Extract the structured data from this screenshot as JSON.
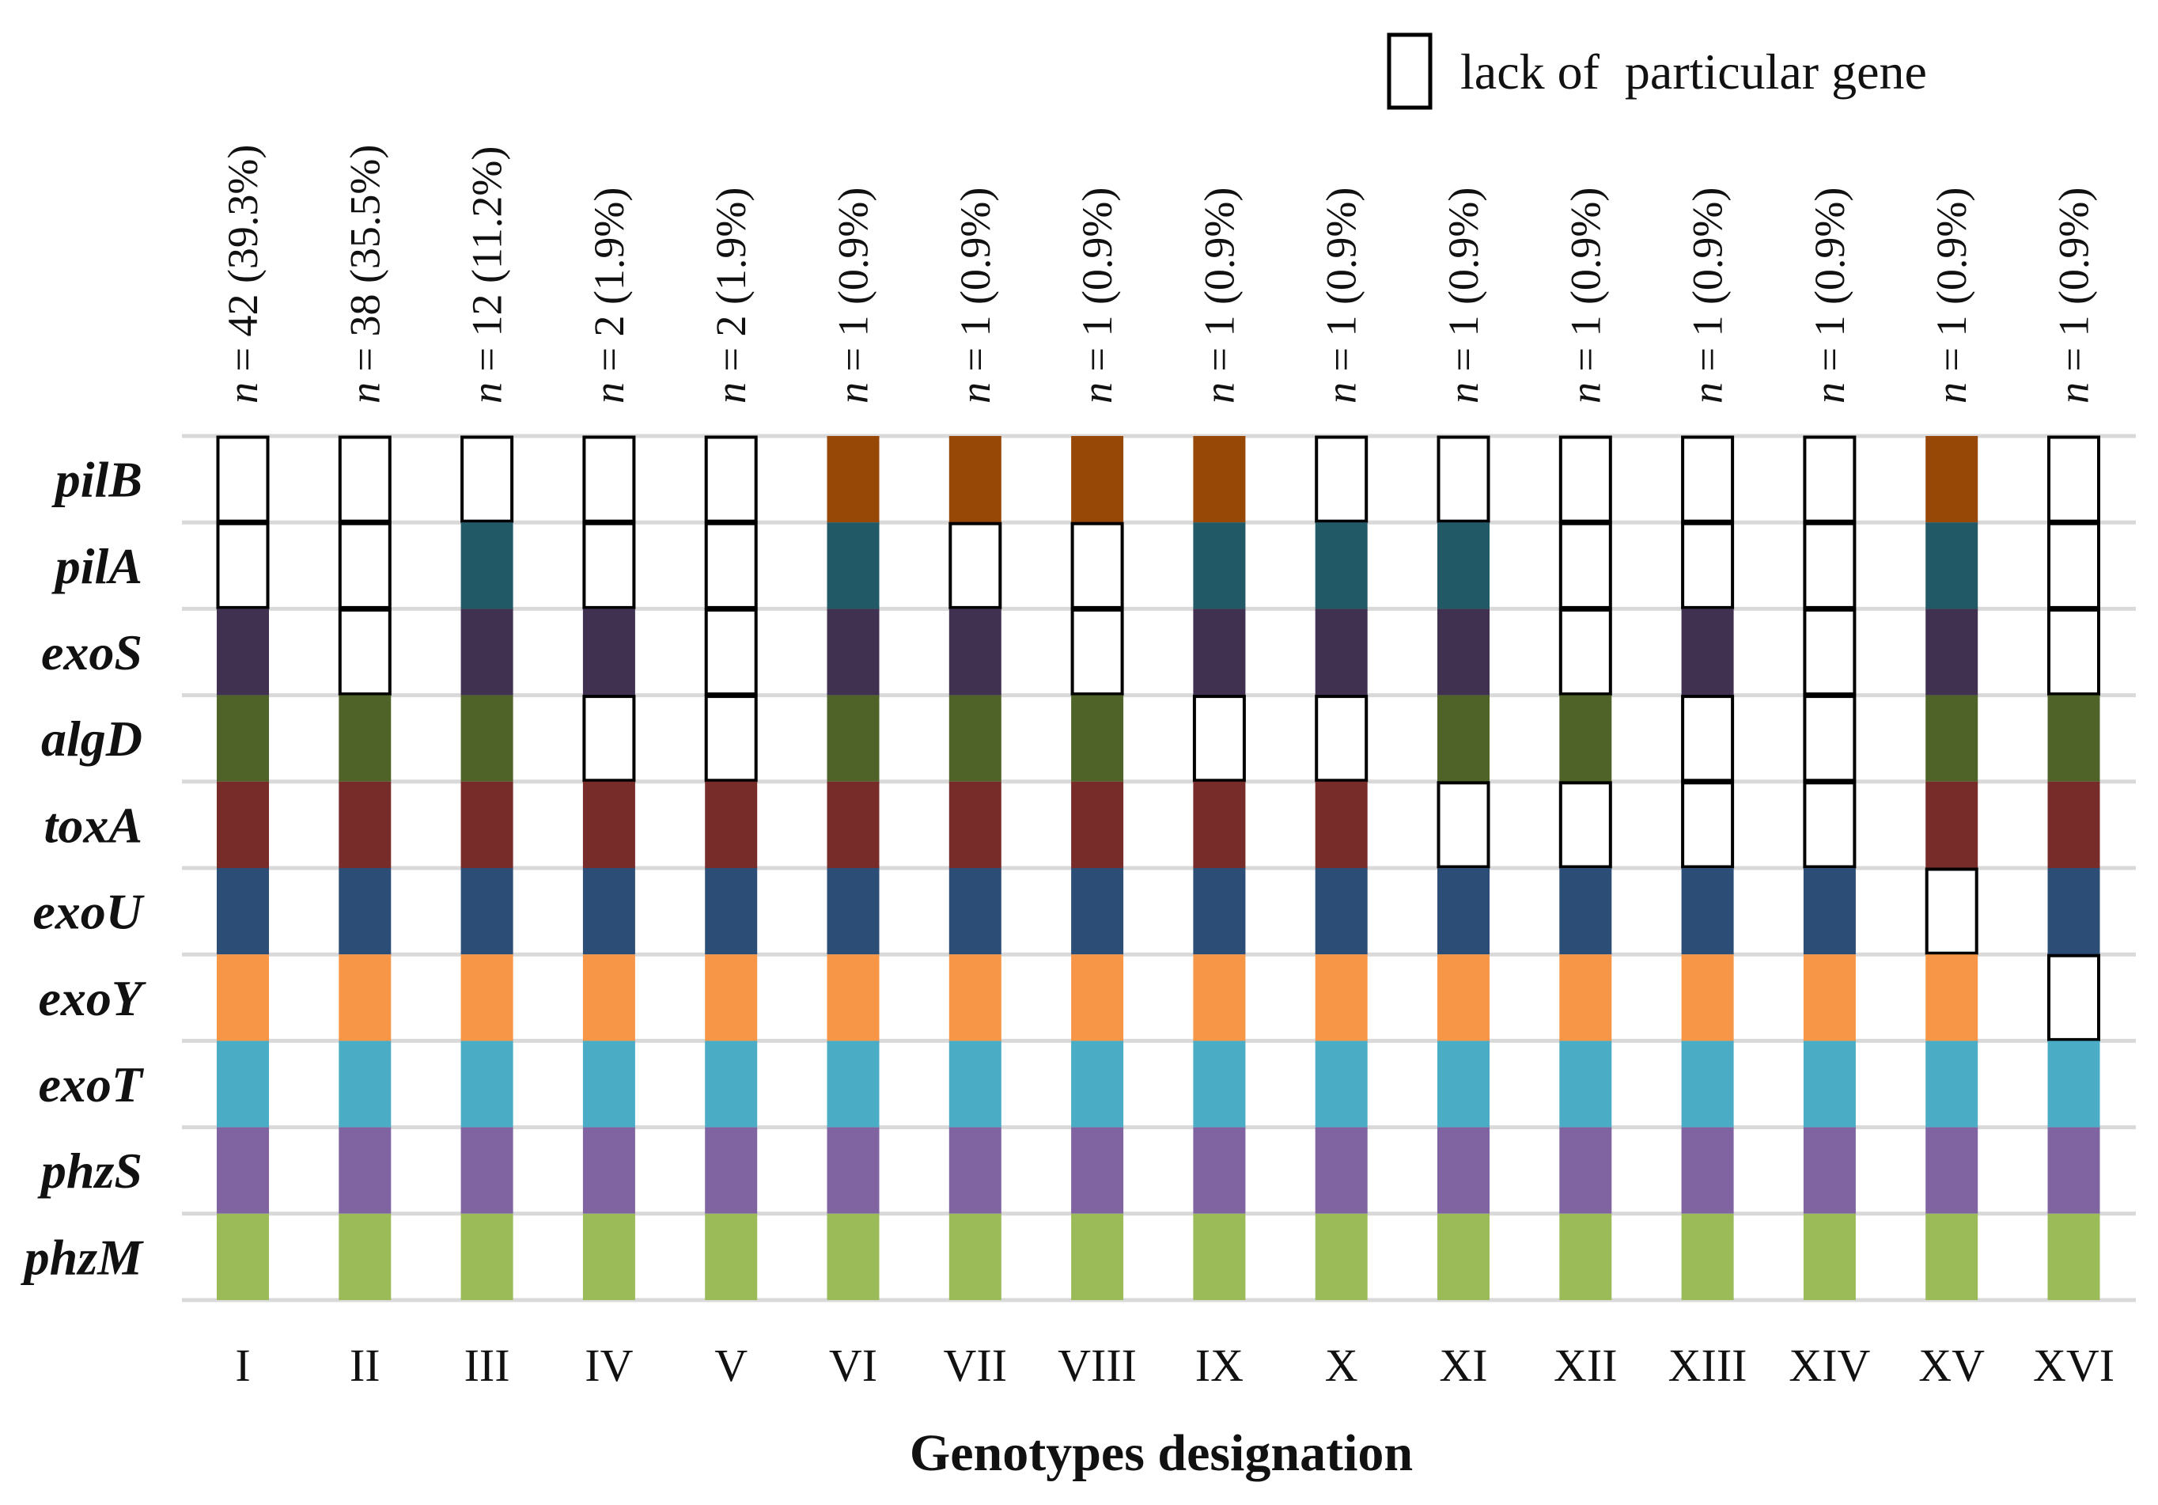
{
  "chart_data": {
    "type": "heatmap",
    "xlabel": "Genotypes designation",
    "legend": {
      "label": "lack of  particular gene",
      "placement": "top-right"
    },
    "genes": [
      "pilB",
      "pilA",
      "exoS",
      "algD",
      "toxA",
      "exoU",
      "exoY",
      "exoT",
      "phzS",
      "phzM"
    ],
    "gene_colors": {
      "pilB": "#974706",
      "pilA": "#215967",
      "exoS": "#403151",
      "algD": "#4F6228",
      "toxA": "#772C2A",
      "exoU": "#2C4D75",
      "exoY": "#F79646",
      "exoT": "#4BACC6",
      "phzS": "#8064A2",
      "phzM": "#9BBB59"
    },
    "genotypes": [
      {
        "name": "I",
        "count": "n = 42 (39.3%)",
        "present": [
          0,
          0,
          1,
          1,
          1,
          1,
          1,
          1,
          1,
          1
        ]
      },
      {
        "name": "II",
        "count": "n = 38 (35.5%)",
        "present": [
          0,
          0,
          0,
          1,
          1,
          1,
          1,
          1,
          1,
          1
        ]
      },
      {
        "name": "III",
        "count": "n = 12 (11.2%)",
        "present": [
          0,
          1,
          1,
          1,
          1,
          1,
          1,
          1,
          1,
          1
        ]
      },
      {
        "name": "IV",
        "count": "n = 2 (1.9%)",
        "present": [
          0,
          0,
          1,
          0,
          1,
          1,
          1,
          1,
          1,
          1
        ]
      },
      {
        "name": "V",
        "count": "n = 2 (1.9%)",
        "present": [
          0,
          0,
          0,
          0,
          1,
          1,
          1,
          1,
          1,
          1
        ]
      },
      {
        "name": "VI",
        "count": "n = 1 (0.9%)",
        "present": [
          1,
          1,
          1,
          1,
          1,
          1,
          1,
          1,
          1,
          1
        ]
      },
      {
        "name": "VII",
        "count": "n = 1 (0.9%)",
        "present": [
          1,
          0,
          1,
          1,
          1,
          1,
          1,
          1,
          1,
          1
        ]
      },
      {
        "name": "VIII",
        "count": "n = 1 (0.9%)",
        "present": [
          1,
          0,
          0,
          1,
          1,
          1,
          1,
          1,
          1,
          1
        ]
      },
      {
        "name": "IX",
        "count": "n = 1 (0.9%)",
        "present": [
          1,
          1,
          1,
          0,
          1,
          1,
          1,
          1,
          1,
          1
        ]
      },
      {
        "name": "X",
        "count": "n = 1 (0.9%)",
        "present": [
          0,
          1,
          1,
          0,
          1,
          1,
          1,
          1,
          1,
          1
        ]
      },
      {
        "name": "XI",
        "count": "n = 1 (0.9%)",
        "present": [
          0,
          1,
          1,
          1,
          0,
          1,
          1,
          1,
          1,
          1
        ]
      },
      {
        "name": "XII",
        "count": "n = 1 (0.9%)",
        "present": [
          0,
          0,
          0,
          1,
          0,
          1,
          1,
          1,
          1,
          1
        ]
      },
      {
        "name": "XIII",
        "count": "n = 1 (0.9%)",
        "present": [
          0,
          0,
          1,
          0,
          0,
          1,
          1,
          1,
          1,
          1
        ]
      },
      {
        "name": "XIV",
        "count": "n = 1 (0.9%)",
        "present": [
          0,
          0,
          0,
          0,
          0,
          1,
          1,
          1,
          1,
          1
        ]
      },
      {
        "name": "XV",
        "count": "n = 1 (0.9%)",
        "present": [
          1,
          1,
          1,
          1,
          1,
          0,
          1,
          1,
          1,
          1
        ]
      },
      {
        "name": "XVI",
        "count": "n = 1 (0.9%)",
        "present": [
          0,
          0,
          0,
          1,
          1,
          1,
          0,
          1,
          1,
          1
        ]
      }
    ]
  }
}
